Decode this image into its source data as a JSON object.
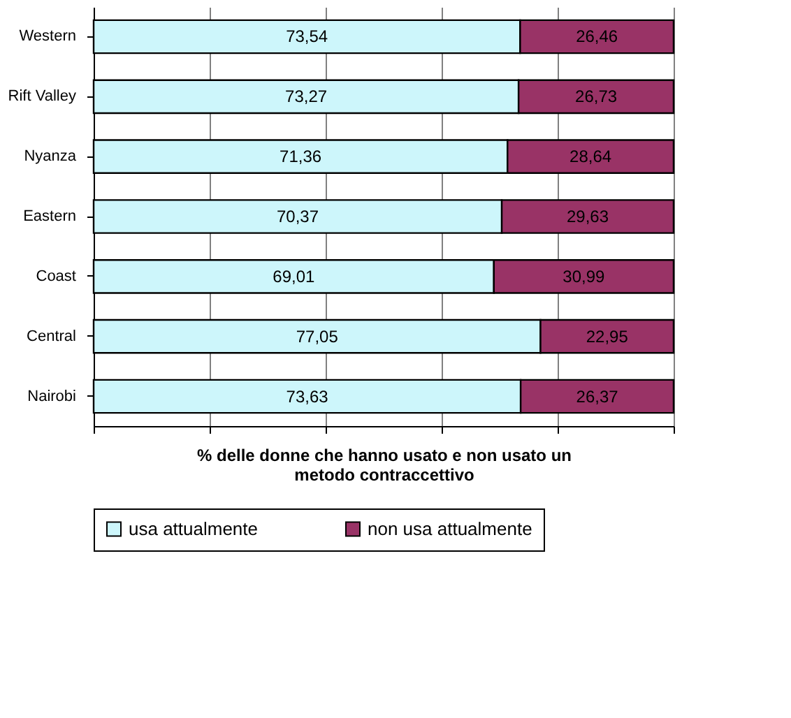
{
  "chart_data": {
    "type": "bar",
    "orientation": "horizontal",
    "stacked": true,
    "categories": [
      "Western",
      "Rift Valley",
      "Nyanza",
      "Eastern",
      "Coast",
      "Central",
      "Nairobi"
    ],
    "series": [
      {
        "name": "usa attualmente",
        "color": "#cdf6fb",
        "values": [
          73.54,
          73.27,
          71.36,
          70.37,
          69.01,
          77.05,
          73.63
        ],
        "value_labels": [
          "73,54",
          "73,27",
          "71,36",
          "70,37",
          "69,01",
          "77,05",
          "73,63"
        ]
      },
      {
        "name": "non usa attualmente",
        "color": "#993366",
        "values": [
          26.46,
          26.73,
          28.64,
          29.63,
          30.99,
          22.95,
          26.37
        ],
        "value_labels": [
          "26,46",
          "26,73",
          "28,64",
          "29,63",
          "30,99",
          "22,95",
          "26,37"
        ]
      }
    ],
    "xlabel": "% delle donne che hanno usato e non usato un metodo contraccettivo",
    "xlim": [
      0,
      100
    ],
    "xticks": [
      {
        "value": 0,
        "label": null
      },
      {
        "value": 20,
        "label": null
      },
      {
        "value": 40,
        "label": null
      },
      {
        "value": 60,
        "label": null
      },
      {
        "value": 80,
        "label": null
      },
      {
        "value": 100,
        "label": null
      }
    ],
    "tick_labels": "y",
    "grid": "x",
    "legend": "bottom"
  }
}
